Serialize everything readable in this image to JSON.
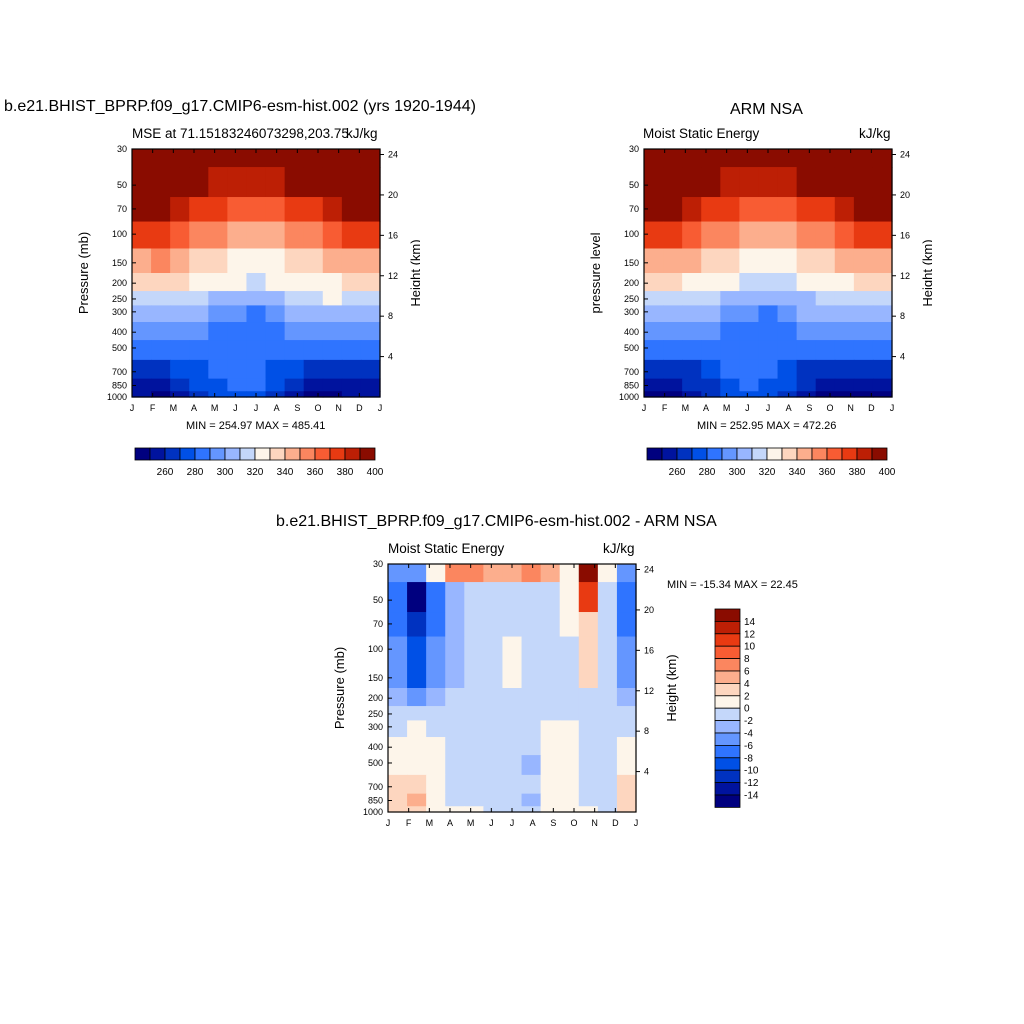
{
  "palette": [
    "#00007f",
    "#00139e",
    "#0032c0",
    "#0050e6",
    "#2f74ff",
    "#6496ff",
    "#98b6ff",
    "#c4d7fa",
    "#fdf5ea",
    "#fdd6bf",
    "#fcae8d",
    "#fb865f",
    "#f85c33",
    "#e83a12",
    "#bd1f05",
    "#8a0c00"
  ],
  "months": [
    "J",
    "F",
    "M",
    "A",
    "M",
    "J",
    "J",
    "A",
    "S",
    "O",
    "N",
    "D",
    "J"
  ],
  "pressure_ticks": [
    30,
    50,
    70,
    100,
    150,
    200,
    250,
    300,
    400,
    500,
    700,
    850,
    1000
  ],
  "height_ticks": [
    24,
    20,
    16,
    12,
    8,
    4
  ],
  "panel_model": {
    "title": "b.e21.BHIST_BPRP.f09_g17.CMIP6-esm-hist.002 (yrs 1920-1944)",
    "left_subtitle": "MSE at 71.15183246073298,203.75",
    "right_subtitle": "kJ/kg",
    "stats": "MIN = 254.97 MAX = 485.41",
    "ylabel": "Pressure (mb)",
    "y2label": "Height (km)"
  },
  "panel_obs": {
    "title": "ARM NSA",
    "left_subtitle": "Moist Static Energy",
    "right_subtitle": "kJ/kg",
    "stats": "MIN = 252.95 MAX = 472.26",
    "ylabel": "pressure level",
    "y2label": "Height (km)"
  },
  "panel_diff": {
    "title": "b.e21.BHIST_BPRP.f09_g17.CMIP6-esm-hist.002 - ARM NSA",
    "left_subtitle": "Moist Static Energy",
    "right_subtitle": "kJ/kg",
    "stats": "MIN = -15.34 MAX =  22.45",
    "ylabel": "Pressure (mb)",
    "y2label": "Height (km)"
  },
  "colorbar_abs_labels": [
    "260",
    "280",
    "300",
    "320",
    "340",
    "360",
    "380",
    "400"
  ],
  "colorbar_diff_labels": [
    "14",
    "12",
    "10",
    "8",
    "6",
    "4",
    "2",
    "0",
    "-2",
    "-4",
    "-6",
    "-8",
    "-10",
    "-12",
    "-14"
  ],
  "chart_data": [
    {
      "type": "heatmap",
      "title": "b.e21.BHIST_BPRP.f09_g17.CMIP6-esm-hist.002 (yrs 1920-1944)",
      "subtitle": "MSE at 71.15183246073298,203.75",
      "units": "kJ/kg",
      "xlabel": "",
      "ylabel": "Pressure (mb)",
      "y2label": "Height (km)",
      "x": [
        "J",
        "F",
        "M",
        "A",
        "M",
        "J",
        "J",
        "A",
        "S",
        "O",
        "N",
        "D",
        "J"
      ],
      "y": [
        30,
        50,
        70,
        100,
        150,
        200,
        250,
        300,
        400,
        500,
        700,
        850,
        1000
      ],
      "y_log_reversed": true,
      "contour_levels": [
        255,
        260,
        270,
        280,
        290,
        300,
        310,
        320,
        330,
        340,
        350,
        360,
        370,
        380,
        390,
        400,
        410
      ],
      "values": [
        [
          485,
          485,
          485,
          485,
          485,
          485,
          485,
          485,
          485,
          485,
          485,
          485,
          485
        ],
        [
          420,
          422,
          415,
          405,
          398,
          395,
          394,
          396,
          400,
          405,
          412,
          420,
          420
        ],
        [
          401,
          403,
          396,
          387,
          380,
          376,
          375,
          377,
          381,
          386,
          393,
          401,
          401
        ],
        [
          383,
          385,
          378,
          369,
          361,
          357,
          356,
          358,
          362,
          367,
          374,
          383,
          383
        ],
        [
          358,
          360,
          354,
          346,
          340,
          336,
          335,
          337,
          341,
          345,
          351,
          358,
          358
        ],
        [
          342,
          343,
          340,
          335,
          332,
          330,
          329,
          330,
          332,
          334,
          337,
          342,
          342
        ],
        [
          329,
          329,
          327,
          323,
          318,
          314,
          313,
          315,
          320,
          326,
          330,
          329,
          329
        ],
        [
          318,
          318,
          317,
          314,
          308,
          300,
          298,
          303,
          312,
          318,
          319,
          318,
          318
        ],
        [
          304,
          305,
          304,
          302,
          298,
          293,
          291,
          295,
          301,
          304,
          305,
          304,
          304
        ],
        [
          293,
          294,
          293,
          291,
          291,
          291,
          291,
          291,
          291,
          292,
          293,
          293,
          293
        ],
        [
          277,
          278,
          280,
          286,
          291,
          293,
          292,
          287,
          280,
          275,
          274,
          277,
          277
        ],
        [
          267,
          267,
          271,
          280,
          288,
          291,
          290,
          283,
          272,
          266,
          263,
          267,
          267
        ],
        [
          260,
          259,
          264,
          273,
          282,
          286,
          284,
          277,
          266,
          259,
          256,
          260,
          260
        ]
      ]
    },
    {
      "type": "heatmap",
      "title": "ARM NSA",
      "subtitle": "Moist Static Energy",
      "units": "kJ/kg",
      "xlabel": "",
      "ylabel": "pressure level",
      "y2label": "Height (km)",
      "x": [
        "J",
        "F",
        "M",
        "A",
        "M",
        "J",
        "J",
        "A",
        "S",
        "O",
        "N",
        "D",
        "J"
      ],
      "y": [
        30,
        50,
        70,
        100,
        150,
        200,
        250,
        300,
        400,
        500,
        700,
        850,
        1000
      ],
      "y_log_reversed": true,
      "contour_levels": [
        255,
        260,
        270,
        280,
        290,
        300,
        310,
        320,
        330,
        340,
        350,
        360,
        370,
        380,
        390,
        400,
        410
      ],
      "values": [
        [
          472,
          472,
          472,
          472,
          472,
          472,
          472,
          472,
          472,
          472,
          472,
          472,
          472
        ],
        [
          418,
          420,
          413,
          404,
          398,
          395,
          394,
          396,
          400,
          404,
          410,
          418,
          418
        ],
        [
          400,
          402,
          395,
          386,
          380,
          376,
          375,
          377,
          381,
          385,
          392,
          400,
          400
        ],
        [
          382,
          384,
          377,
          368,
          361,
          357,
          356,
          358,
          362,
          366,
          373,
          382,
          382
        ],
        [
          357,
          359,
          353,
          345,
          340,
          336,
          335,
          337,
          341,
          344,
          350,
          357,
          357
        ],
        [
          341,
          342,
          339,
          334,
          331,
          329,
          328,
          329,
          331,
          333,
          336,
          341,
          341
        ],
        [
          328,
          328,
          326,
          322,
          317,
          313,
          312,
          314,
          319,
          325,
          329,
          328,
          328
        ],
        [
          317,
          317,
          316,
          313,
          307,
          300,
          297,
          302,
          311,
          317,
          318,
          317,
          317
        ],
        [
          303,
          304,
          303,
          301,
          297,
          292,
          290,
          294,
          300,
          303,
          304,
          303,
          303
        ],
        [
          292,
          293,
          292,
          290,
          290,
          290,
          290,
          290,
          290,
          291,
          292,
          292,
          292
        ],
        [
          276,
          277,
          279,
          285,
          290,
          292,
          291,
          286,
          279,
          274,
          273,
          276,
          276
        ],
        [
          266,
          266,
          270,
          279,
          287,
          290,
          289,
          282,
          271,
          265,
          262,
          266,
          266
        ],
        [
          259,
          258,
          263,
          272,
          281,
          285,
          283,
          276,
          265,
          258,
          255,
          259,
          259
        ]
      ]
    },
    {
      "type": "heatmap",
      "title": "b.e21.BHIST_BPRP.f09_g17.CMIP6-esm-hist.002 - ARM NSA",
      "subtitle": "Moist Static Energy",
      "units": "kJ/kg",
      "xlabel": "",
      "ylabel": "Pressure (mb)",
      "y2label": "Height (km)",
      "x": [
        "J",
        "F",
        "M",
        "A",
        "M",
        "J",
        "J",
        "A",
        "S",
        "O",
        "N",
        "D",
        "J"
      ],
      "y": [
        30,
        50,
        70,
        100,
        150,
        200,
        250,
        300,
        400,
        500,
        700,
        850,
        1000
      ],
      "y_log_reversed": true,
      "contour_levels": [
        -16,
        -14,
        -12,
        -10,
        -8,
        -6,
        -4,
        -2,
        0,
        2,
        4,
        6,
        8,
        10,
        12,
        14,
        16
      ],
      "values": [
        [
          -6,
          -6,
          1,
          6,
          6,
          4,
          5,
          6,
          4,
          1,
          22,
          1,
          -6
        ],
        [
          -8,
          -15,
          -8,
          -3,
          -1,
          -1,
          -1,
          -1,
          -1,
          0,
          10,
          -1,
          -8
        ],
        [
          -8,
          -12,
          -7,
          -3,
          -2,
          -1,
          -1,
          -1,
          -1,
          0,
          3,
          -1,
          -8
        ],
        [
          -6,
          -10,
          -6,
          -3,
          -2,
          -1,
          0,
          -1,
          -1,
          -1,
          2,
          -1,
          -6
        ],
        [
          -5,
          -9,
          -6,
          -3,
          -1,
          -1,
          1,
          -1,
          -1,
          -1,
          2,
          -1,
          -5
        ],
        [
          -3,
          -5,
          -4,
          -1,
          -1,
          -1,
          -1,
          -2,
          -2,
          -1,
          -1,
          -1,
          -3
        ],
        [
          -2,
          -2,
          -1,
          -1,
          -1,
          -1,
          -1,
          -1,
          -1,
          -1,
          -1,
          -1,
          -2
        ],
        [
          -1,
          1,
          -1,
          -1,
          -1,
          -1,
          -1,
          -1,
          1,
          1,
          -1,
          -1,
          -1
        ],
        [
          1,
          1,
          1,
          -1,
          -1,
          -1,
          -1,
          -2,
          1,
          1,
          -1,
          -1,
          1
        ],
        [
          1,
          1,
          1,
          -1,
          -1,
          -1,
          -2,
          -3,
          1,
          1,
          -1,
          -1,
          1
        ],
        [
          2,
          2,
          1,
          -1,
          -1,
          -1,
          -1,
          -2,
          1,
          1,
          -1,
          -1,
          2
        ],
        [
          3,
          5,
          1,
          -1,
          -2,
          -1,
          -2,
          -4,
          0,
          1,
          -1,
          -1,
          3
        ],
        [
          2,
          2,
          1,
          1,
          1,
          -1,
          -2,
          -2,
          0,
          1,
          1,
          -1,
          2
        ]
      ]
    }
  ]
}
